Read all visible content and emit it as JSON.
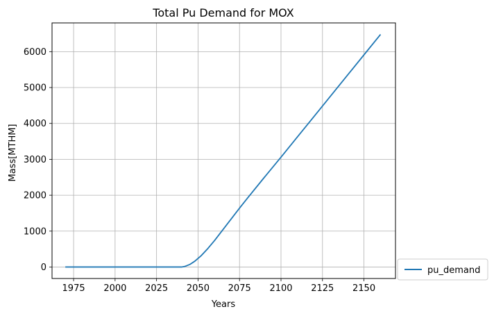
{
  "chart_data": {
    "type": "line",
    "title": "Total Pu Demand for MOX",
    "xlabel": "Years",
    "ylabel": "Mass[MTHM]",
    "xlim": [
      1962,
      2169
    ],
    "ylim": [
      -320,
      6800
    ],
    "x_ticks": [
      1975,
      2000,
      2025,
      2050,
      2075,
      2100,
      2125,
      2150
    ],
    "y_ticks": [
      0,
      1000,
      2000,
      3000,
      4000,
      5000,
      6000
    ],
    "grid": true,
    "legend_position": "outside-lower-right",
    "series": [
      {
        "name": "pu_demand",
        "color": "#1f77b4",
        "x": [
          1970,
          1990,
          2010,
          2030,
          2040,
          2042,
          2045,
          2048,
          2052,
          2056,
          2060,
          2065,
          2070,
          2075,
          2080,
          2090,
          2100,
          2110,
          2120,
          2130,
          2140,
          2150,
          2160
        ],
        "y": [
          0,
          0,
          0,
          0,
          0,
          15,
          70,
          160,
          320,
          520,
          740,
          1040,
          1340,
          1640,
          1930,
          2500,
          3060,
          3630,
          4200,
          4770,
          5340,
          5910,
          6480
        ]
      }
    ]
  }
}
